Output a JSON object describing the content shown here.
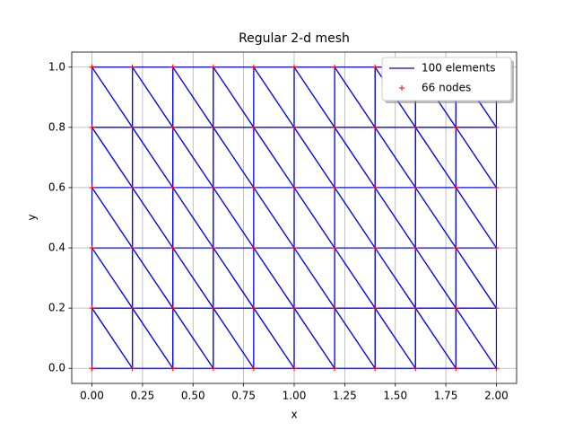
{
  "chart_data": {
    "type": "mesh",
    "title": "Regular 2-d mesh",
    "x_label": "x",
    "y_label": "y",
    "xlim": [
      -0.1,
      2.1
    ],
    "ylim": [
      -0.05,
      1.05
    ],
    "xticks": [
      {
        "value": 0,
        "label": "0.00"
      },
      {
        "value": 0.25,
        "label": "0.25"
      },
      {
        "value": 0.5,
        "label": "0.50"
      },
      {
        "value": 0.75,
        "label": "0.75"
      },
      {
        "value": 1,
        "label": "1.00"
      },
      {
        "value": 1.25,
        "label": "1.25"
      },
      {
        "value": 1.5,
        "label": "1.50"
      },
      {
        "value": 1.75,
        "label": "1.75"
      },
      {
        "value": 2,
        "label": "2.00"
      }
    ],
    "yticks": [
      {
        "value": 0,
        "label": "0.0"
      },
      0.2,
      0.4,
      0.6,
      0.8,
      {
        "value": 1,
        "label": "1.0"
      }
    ],
    "grid": true,
    "legend": "upper right",
    "series": [
      {
        "name": "100 elements",
        "color": "#0000ff",
        "triangles": [
          [
            0,
            1,
            11
          ],
          [
            1,
            12,
            11
          ],
          [
            1,
            2,
            12
          ],
          [
            2,
            13,
            12
          ],
          [
            2,
            3,
            13
          ],
          [
            3,
            14,
            13
          ],
          [
            3,
            4,
            14
          ],
          [
            4,
            15,
            14
          ],
          [
            4,
            5,
            15
          ],
          [
            5,
            16,
            15
          ],
          [
            5,
            6,
            16
          ],
          [
            6,
            17,
            16
          ],
          [
            6,
            7,
            17
          ],
          [
            7,
            18,
            17
          ],
          [
            7,
            8,
            18
          ],
          [
            8,
            19,
            18
          ],
          [
            8,
            9,
            19
          ],
          [
            9,
            20,
            19
          ],
          [
            9,
            10,
            20
          ],
          [
            10,
            21,
            20
          ],
          [
            11,
            12,
            22
          ],
          [
            12,
            23,
            22
          ],
          [
            12,
            13,
            23
          ],
          [
            13,
            24,
            23
          ],
          [
            13,
            14,
            24
          ],
          [
            14,
            25,
            24
          ],
          [
            14,
            15,
            25
          ],
          [
            15,
            26,
            25
          ],
          [
            15,
            16,
            26
          ],
          [
            16,
            27,
            26
          ],
          [
            16,
            17,
            27
          ],
          [
            17,
            28,
            27
          ],
          [
            17,
            18,
            28
          ],
          [
            18,
            29,
            28
          ],
          [
            18,
            19,
            29
          ],
          [
            19,
            30,
            29
          ],
          [
            19,
            20,
            30
          ],
          [
            20,
            31,
            30
          ],
          [
            20,
            21,
            31
          ],
          [
            21,
            32,
            31
          ],
          [
            22,
            23,
            33
          ],
          [
            23,
            34,
            33
          ],
          [
            23,
            24,
            34
          ],
          [
            24,
            35,
            34
          ],
          [
            24,
            25,
            35
          ],
          [
            25,
            36,
            35
          ],
          [
            25,
            26,
            36
          ],
          [
            26,
            37,
            36
          ],
          [
            26,
            27,
            37
          ],
          [
            27,
            38,
            37
          ],
          [
            27,
            28,
            38
          ],
          [
            28,
            39,
            38
          ],
          [
            28,
            29,
            39
          ],
          [
            29,
            40,
            39
          ],
          [
            29,
            30,
            40
          ],
          [
            30,
            41,
            40
          ],
          [
            30,
            31,
            41
          ],
          [
            31,
            42,
            41
          ],
          [
            31,
            32,
            42
          ],
          [
            32,
            43,
            42
          ],
          [
            33,
            34,
            44
          ],
          [
            34,
            45,
            44
          ],
          [
            34,
            35,
            45
          ],
          [
            35,
            46,
            45
          ],
          [
            35,
            36,
            46
          ],
          [
            36,
            47,
            46
          ],
          [
            36,
            37,
            47
          ],
          [
            37,
            48,
            47
          ],
          [
            37,
            38,
            48
          ],
          [
            38,
            49,
            48
          ],
          [
            38,
            39,
            49
          ],
          [
            39,
            50,
            49
          ],
          [
            39,
            40,
            50
          ],
          [
            40,
            51,
            50
          ],
          [
            40,
            41,
            51
          ],
          [
            41,
            52,
            51
          ],
          [
            41,
            42,
            52
          ],
          [
            42,
            53,
            52
          ],
          [
            42,
            43,
            53
          ],
          [
            43,
            54,
            53
          ],
          [
            44,
            45,
            55
          ],
          [
            45,
            56,
            55
          ],
          [
            45,
            46,
            56
          ],
          [
            46,
            57,
            56
          ],
          [
            46,
            47,
            57
          ],
          [
            47,
            58,
            57
          ],
          [
            47,
            48,
            58
          ],
          [
            48,
            59,
            58
          ],
          [
            48,
            49,
            59
          ],
          [
            49,
            60,
            59
          ],
          [
            49,
            50,
            60
          ],
          [
            50,
            61,
            60
          ],
          [
            50,
            51,
            61
          ],
          [
            51,
            62,
            61
          ],
          [
            51,
            52,
            62
          ],
          [
            52,
            63,
            62
          ],
          [
            52,
            53,
            63
          ],
          [
            53,
            64,
            63
          ],
          [
            53,
            54,
            64
          ],
          [
            54,
            65,
            64
          ]
        ]
      },
      {
        "name": "66 nodes",
        "color": "#ff0000",
        "x": [
          0,
          0.2,
          0.4,
          0.6,
          0.8,
          1,
          1.2,
          1.4,
          1.6,
          1.8,
          2,
          0,
          0.2,
          0.4,
          0.6,
          0.8,
          1,
          1.2,
          1.4,
          1.6,
          1.8,
          2,
          0,
          0.2,
          0.4,
          0.6,
          0.8,
          1,
          1.2,
          1.4,
          1.6,
          1.8,
          2,
          0,
          0.2,
          0.4,
          0.6,
          0.8,
          1,
          1.2,
          1.4,
          1.6,
          1.8,
          2,
          0,
          0.2,
          0.4,
          0.6,
          0.8,
          1,
          1.2,
          1.4,
          1.6,
          1.8,
          2,
          0,
          0.2,
          0.4,
          0.6,
          0.8,
          1,
          1.2,
          1.4,
          1.6,
          1.8,
          2
        ],
        "values": [
          0,
          0,
          0,
          0,
          0,
          0,
          0,
          0,
          0,
          0,
          0,
          0.2,
          0.2,
          0.2,
          0.2,
          0.2,
          0.2,
          0.2,
          0.2,
          0.2,
          0.2,
          0.2,
          0.4,
          0.4,
          0.4,
          0.4,
          0.4,
          0.4,
          0.4,
          0.4,
          0.4,
          0.4,
          0.4,
          0.6,
          0.6,
          0.6,
          0.6,
          0.6,
          0.6,
          0.6,
          0.6,
          0.6,
          0.6,
          0.6,
          0.8,
          0.8,
          0.8,
          0.8,
          0.8,
          0.8,
          0.8,
          0.8,
          0.8,
          0.8,
          0.8,
          1,
          1,
          1,
          1,
          1,
          1,
          1,
          1,
          1,
          1,
          1
        ]
      }
    ]
  }
}
